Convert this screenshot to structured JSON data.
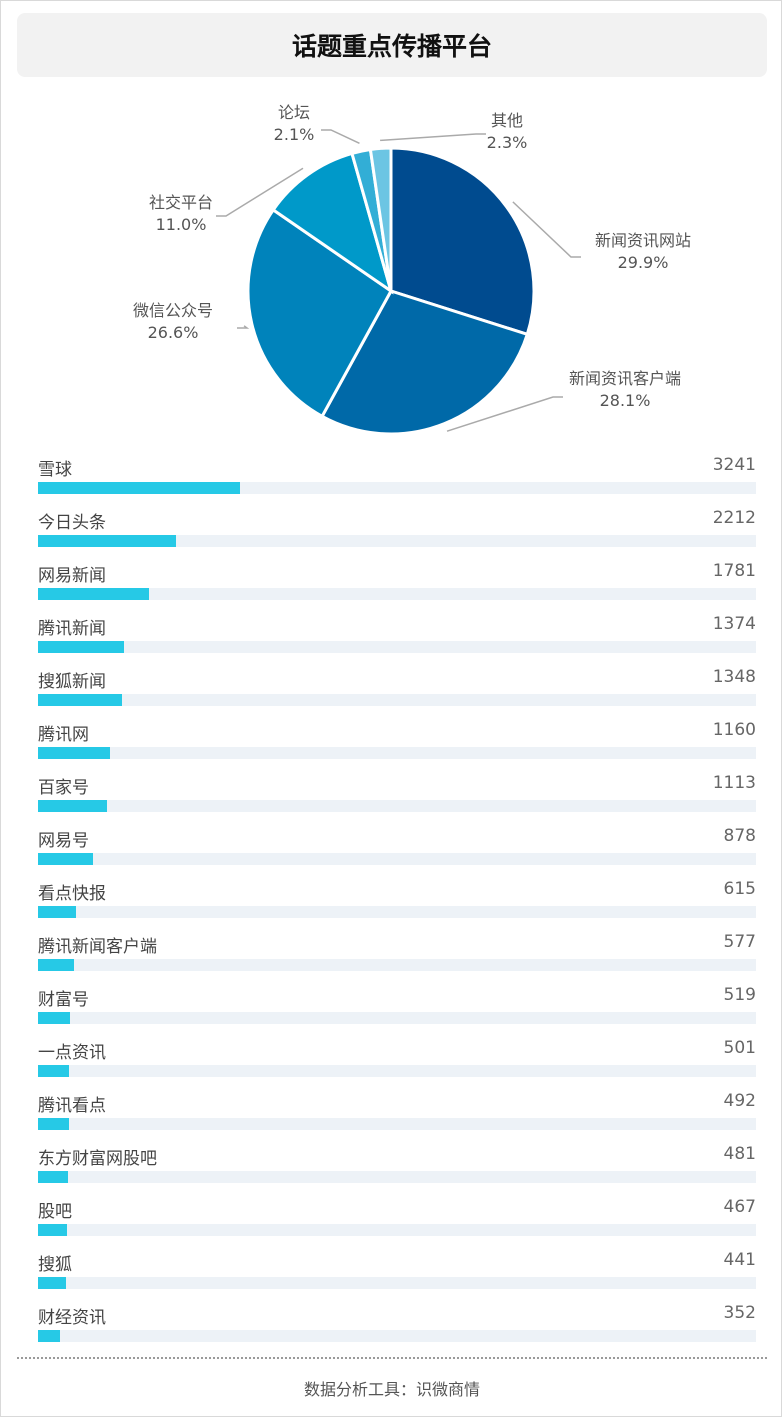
{
  "header": {
    "title": "话题重点传播平台"
  },
  "footer": {
    "label": "数据分析工具：识微商情"
  },
  "chart_data": [
    {
      "type": "pie",
      "title": "",
      "slices": [
        {
          "label": "新闻资讯网站",
          "value": 29.9,
          "value_text": "29.9%",
          "color": "#004b8f"
        },
        {
          "label": "新闻资讯客户端",
          "value": 28.1,
          "value_text": "28.1%",
          "color": "#0069a8"
        },
        {
          "label": "微信公众号",
          "value": 26.6,
          "value_text": "26.6%",
          "color": "#0083bb"
        },
        {
          "label": "社交平台",
          "value": 11.0,
          "value_text": "11.0%",
          "color": "#0099c9"
        },
        {
          "label": "论坛",
          "value": 2.1,
          "value_text": "2.1%",
          "color": "#32aed6"
        },
        {
          "label": "其他",
          "value": 2.3,
          "value_text": "2.3%",
          "color": "#6cc5e3"
        }
      ]
    },
    {
      "type": "bar",
      "orientation": "horizontal",
      "title": "",
      "bar_color": "#26c9e6",
      "track_color": "#edf2f7",
      "max": 11500,
      "categories": [
        "雪球",
        "今日头条",
        "网易新闻",
        "腾讯新闻",
        "搜狐新闻",
        "腾讯网",
        "百家号",
        "网易号",
        "看点快报",
        "腾讯新闻客户端",
        "财富号",
        "一点资讯",
        "腾讯看点",
        "东方财富网股吧",
        "股吧",
        "搜狐",
        "财经资讯"
      ],
      "values": [
        3241,
        2212,
        1781,
        1374,
        1348,
        1160,
        1113,
        878,
        615,
        577,
        519,
        501,
        492,
        481,
        467,
        441,
        352
      ]
    }
  ]
}
